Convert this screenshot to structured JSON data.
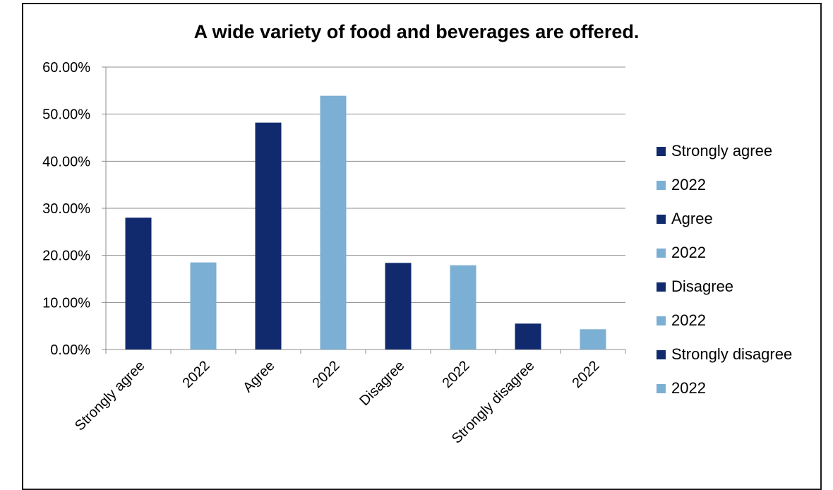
{
  "chart_data": {
    "type": "bar",
    "title": "A wide variety of food and beverages are offered.",
    "categories": [
      "Strongly agree",
      "2022",
      "Agree",
      "2022",
      "Disagree",
      "2022",
      "Strongly disagree",
      "2022"
    ],
    "values": [
      0.28,
      0.185,
      0.482,
      0.539,
      0.184,
      0.179,
      0.055,
      0.043
    ],
    "bar_colors": [
      "#112a6e",
      "#7bafd4",
      "#112a6e",
      "#7bafd4",
      "#112a6e",
      "#7bafd4",
      "#112a6e",
      "#7bafd4"
    ],
    "ylim": [
      0,
      0.6
    ],
    "yticks": [
      0,
      0.1,
      0.2,
      0.3,
      0.4,
      0.5,
      0.6
    ],
    "ytick_labels": [
      "0.00%",
      "10.00%",
      "20.00%",
      "30.00%",
      "40.00%",
      "50.00%",
      "60.00%"
    ],
    "xlabel": "",
    "ylabel": "",
    "grid": true,
    "legend_position": "right",
    "legend": [
      {
        "label": "Strongly agree",
        "color": "#112a6e"
      },
      {
        "label": "2022",
        "color": "#7bafd4"
      },
      {
        "label": "Agree",
        "color": "#112a6e"
      },
      {
        "label": "2022",
        "color": "#7bafd4"
      },
      {
        "label": "Disagree",
        "color": "#112a6e"
      },
      {
        "label": "2022",
        "color": "#7bafd4"
      },
      {
        "label": "Strongly disagree",
        "color": "#112a6e"
      },
      {
        "label": "2022",
        "color": "#7bafd4"
      }
    ]
  }
}
